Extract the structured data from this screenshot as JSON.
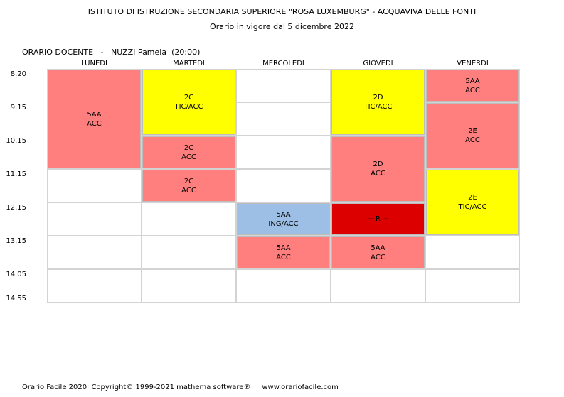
{
  "header": {
    "school": "ISTITUTO DI ISTRUZIONE SECONDARIA SUPERIORE \"ROSA LUXEMBURG\" - ACQUAVIVA DELLE FONTI",
    "validity": "Orario in vigore dal 5 dicembre 2022"
  },
  "schedule": {
    "title": "ORARIO DOCENTE   -   NUZZI Pamela  (20:00)",
    "days": [
      "LUNEDI",
      "MARTEDI",
      "MERCOLEDI",
      "GIOVEDI",
      "VENERDI"
    ],
    "times": [
      "8.20",
      "9.15",
      "10.15",
      "11.15",
      "12.15",
      "13.15",
      "14.05",
      "14.55"
    ],
    "colors": {
      "red": "#ff7f7f",
      "yellow": "#ffff00",
      "blue": "#9dbfe6",
      "darkred": "#dd0000",
      "grid": "#d3d3d3"
    },
    "lessons": [
      {
        "day": 0,
        "start": 0,
        "span": 3,
        "class": "5AA",
        "subject": "ACC",
        "color": "red"
      },
      {
        "day": 1,
        "start": 0,
        "span": 2,
        "class": "2C",
        "subject": "TIC/ACC",
        "color": "yellow"
      },
      {
        "day": 1,
        "start": 2,
        "span": 1,
        "class": "2C",
        "subject": "ACC",
        "color": "red"
      },
      {
        "day": 1,
        "start": 3,
        "span": 1,
        "class": "2C",
        "subject": "ACC",
        "color": "red"
      },
      {
        "day": 2,
        "start": 4,
        "span": 1,
        "class": "5AA",
        "subject": "ING/ACC",
        "color": "blue"
      },
      {
        "day": 2,
        "start": 5,
        "span": 1,
        "class": "5AA",
        "subject": "ACC",
        "color": "red"
      },
      {
        "day": 3,
        "start": 0,
        "span": 2,
        "class": "2D",
        "subject": "TIC/ACC",
        "color": "yellow"
      },
      {
        "day": 3,
        "start": 2,
        "span": 2,
        "class": "2D",
        "subject": "ACC",
        "color": "red"
      },
      {
        "day": 3,
        "start": 4,
        "span": 1,
        "class": "-- R --",
        "subject": "",
        "color": "darkred"
      },
      {
        "day": 3,
        "start": 5,
        "span": 1,
        "class": "5AA",
        "subject": "ACC",
        "color": "red"
      },
      {
        "day": 4,
        "start": 0,
        "span": 1,
        "class": "5AA",
        "subject": "ACC",
        "color": "red"
      },
      {
        "day": 4,
        "start": 1,
        "span": 2,
        "class": "2E",
        "subject": "ACC",
        "color": "red"
      },
      {
        "day": 4,
        "start": 3,
        "span": 2,
        "class": "2E",
        "subject": "TIC/ACC",
        "color": "yellow"
      }
    ]
  },
  "footer": "Orario Facile 2020  Copyright© 1999-2021 mathema software®     www.orariofacile.com"
}
